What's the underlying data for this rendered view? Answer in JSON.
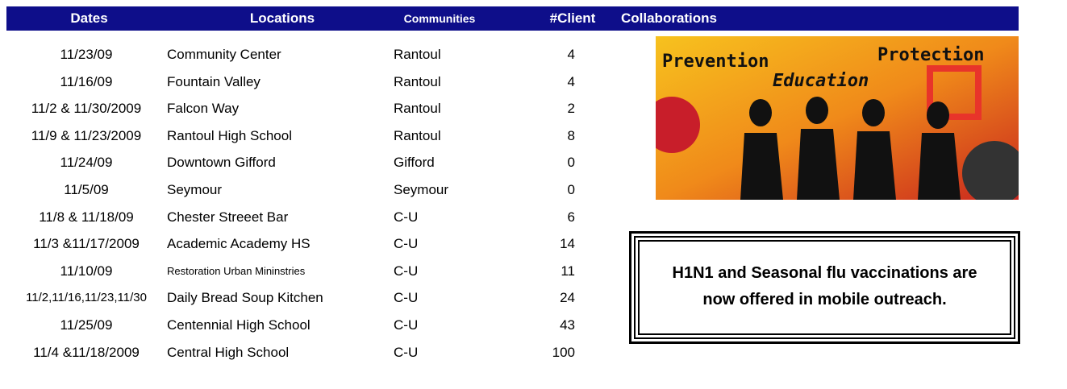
{
  "table": {
    "header": [
      "Dates",
      "Locations",
      "Communities",
      "#Client",
      "Collaborations"
    ],
    "rows": [
      [
        "11/23/09",
        "Community Center",
        "Rantoul",
        4
      ],
      [
        "11/16/09",
        "Fountain Valley",
        "Rantoul",
        4
      ],
      [
        "11/2 & 11/30/2009",
        "Falcon Way",
        "Rantoul",
        2
      ],
      [
        "11/9 & 11/23/2009",
        "Rantoul High School",
        "Rantoul",
        8
      ],
      [
        "11/24/09",
        "Downtown Gifford",
        "Gifford",
        0
      ],
      [
        "11/5/09",
        "Seymour",
        "Seymour",
        0
      ],
      [
        "11/8 & 11/18/09",
        "Chester Streeet Bar",
        "C-U",
        6
      ],
      [
        "11/3 &11/17/2009",
        "Academic Academy HS",
        "C-U",
        14
      ],
      [
        "11/10/09",
        "Restoration Urban Mininstries",
        "C-U",
        11
      ],
      [
        "11/2,11/16,11/23,11/30",
        "Daily Bread Soup Kitchen",
        "C-U",
        24
      ],
      [
        "11/25/09",
        "Centennial High School",
        "C-U",
        43
      ],
      [
        "11/4 &11/18/2009",
        "Central High School",
        "C-U",
        100
      ]
    ]
  },
  "image": {
    "words": [
      "Prevention",
      "Protection",
      "Education"
    ]
  },
  "notice": {
    "text": "H1N1 and Seasonal flu vaccinations are now offered in mobile outreach."
  }
}
